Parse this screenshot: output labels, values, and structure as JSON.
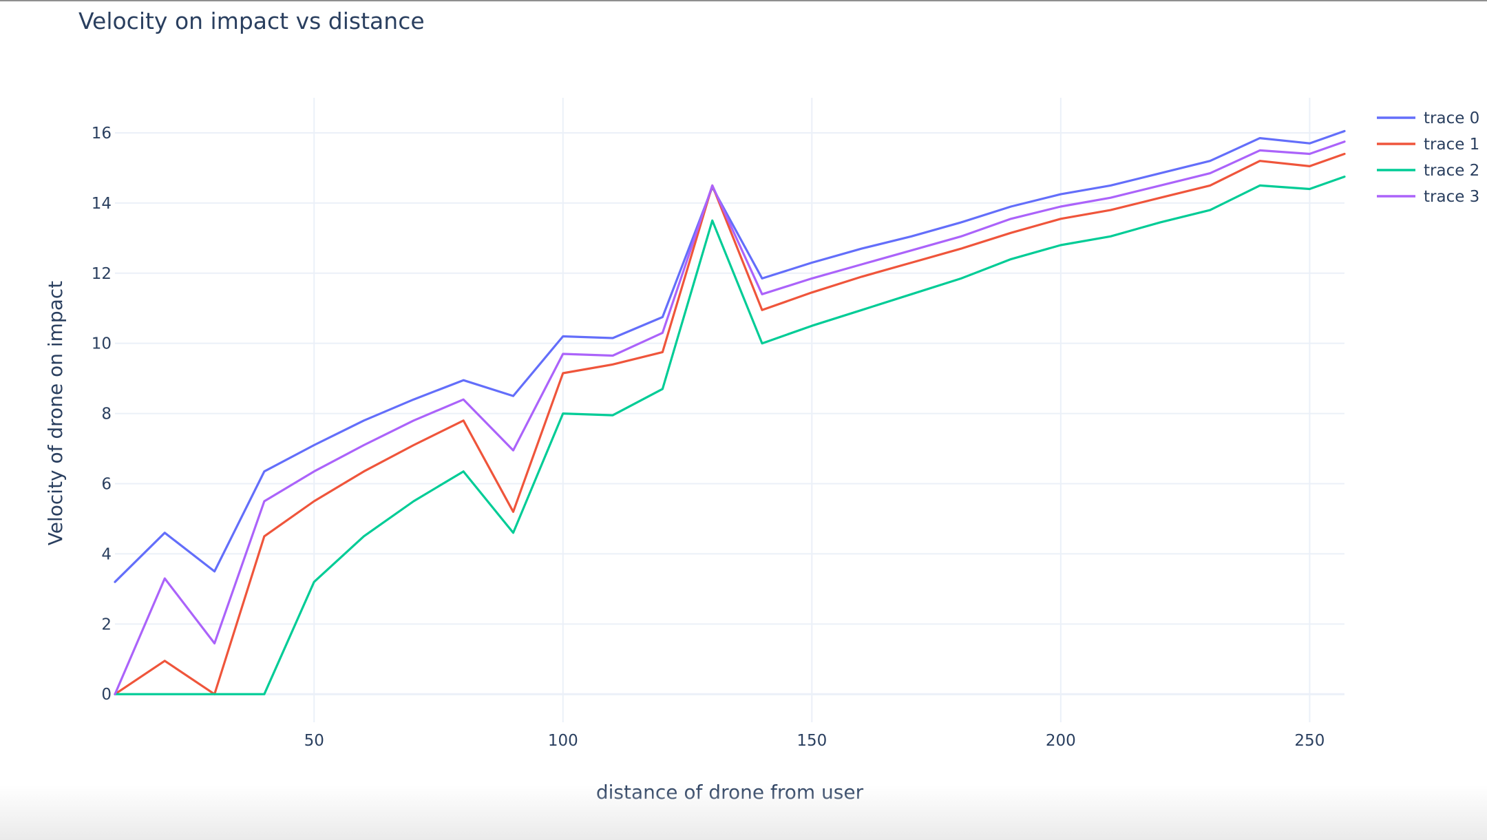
{
  "chart_data": {
    "type": "line",
    "title": "Velocity on impact vs distance",
    "xlabel": "distance of drone from user",
    "ylabel": "Velocity of drone on impact",
    "xlim": [
      10,
      257
    ],
    "ylim": [
      -0.8,
      17
    ],
    "x_ticks": [
      50,
      100,
      150,
      200,
      250
    ],
    "y_ticks": [
      0,
      2,
      4,
      6,
      8,
      10,
      12,
      14,
      16
    ],
    "grid": true,
    "legend_position": "top-right",
    "x": [
      10,
      20,
      30,
      40,
      50,
      60,
      70,
      80,
      90,
      100,
      110,
      120,
      130,
      140,
      150,
      160,
      170,
      180,
      190,
      200,
      210,
      220,
      230,
      240,
      250,
      257
    ],
    "series": [
      {
        "name": "trace 0",
        "color": "#636efa",
        "values": [
          3.2,
          4.6,
          3.5,
          6.35,
          7.1,
          7.8,
          8.4,
          8.95,
          8.5,
          10.2,
          10.15,
          10.75,
          14.45,
          11.85,
          12.3,
          12.7,
          13.05,
          13.45,
          13.9,
          14.25,
          14.5,
          14.85,
          15.2,
          15.85,
          15.7,
          16.05
        ]
      },
      {
        "name": "trace 1",
        "color": "#ef553b",
        "values": [
          0,
          0.95,
          0,
          4.5,
          5.5,
          6.35,
          7.1,
          7.8,
          5.2,
          9.15,
          9.4,
          9.75,
          14.5,
          10.95,
          11.45,
          11.9,
          12.3,
          12.7,
          13.15,
          13.55,
          13.8,
          14.15,
          14.5,
          15.2,
          15.05,
          15.4
        ]
      },
      {
        "name": "trace 2",
        "color": "#00cc96",
        "values": [
          0,
          0,
          0,
          0,
          3.2,
          4.5,
          5.5,
          6.35,
          4.6,
          8.0,
          7.95,
          8.7,
          13.5,
          10.0,
          10.5,
          10.95,
          11.4,
          11.85,
          12.4,
          12.8,
          13.05,
          13.45,
          13.8,
          14.5,
          14.4,
          14.75
        ]
      },
      {
        "name": "trace 3",
        "color": "#ab63fa",
        "values": [
          0,
          3.3,
          1.45,
          5.5,
          6.35,
          7.1,
          7.8,
          8.4,
          6.95,
          9.7,
          9.65,
          10.3,
          14.5,
          11.4,
          11.85,
          12.25,
          12.65,
          13.05,
          13.55,
          13.9,
          14.15,
          14.5,
          14.85,
          15.5,
          15.4,
          15.75
        ]
      }
    ]
  }
}
